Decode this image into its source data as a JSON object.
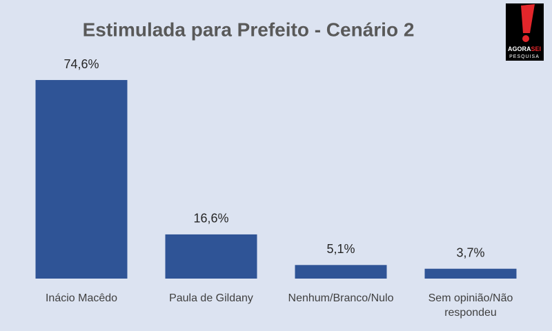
{
  "chart_data": {
    "type": "bar",
    "title": "Estimulada para Prefeito - Cenário 2",
    "categories": [
      "Inácio Macêdo",
      "Paula de Gildany",
      "Nenhum/Branco/Nulo",
      "Sem opinião/Não respondeu"
    ],
    "values": [
      74.6,
      16.6,
      5.1,
      3.7
    ],
    "value_labels": [
      "74,6%",
      "16,6%",
      "5,1%",
      "3,7%"
    ],
    "color": "#2f5496"
  },
  "logo": {
    "word1": "AGORA",
    "word2": "SEI",
    "word3": "PESQUISA"
  }
}
